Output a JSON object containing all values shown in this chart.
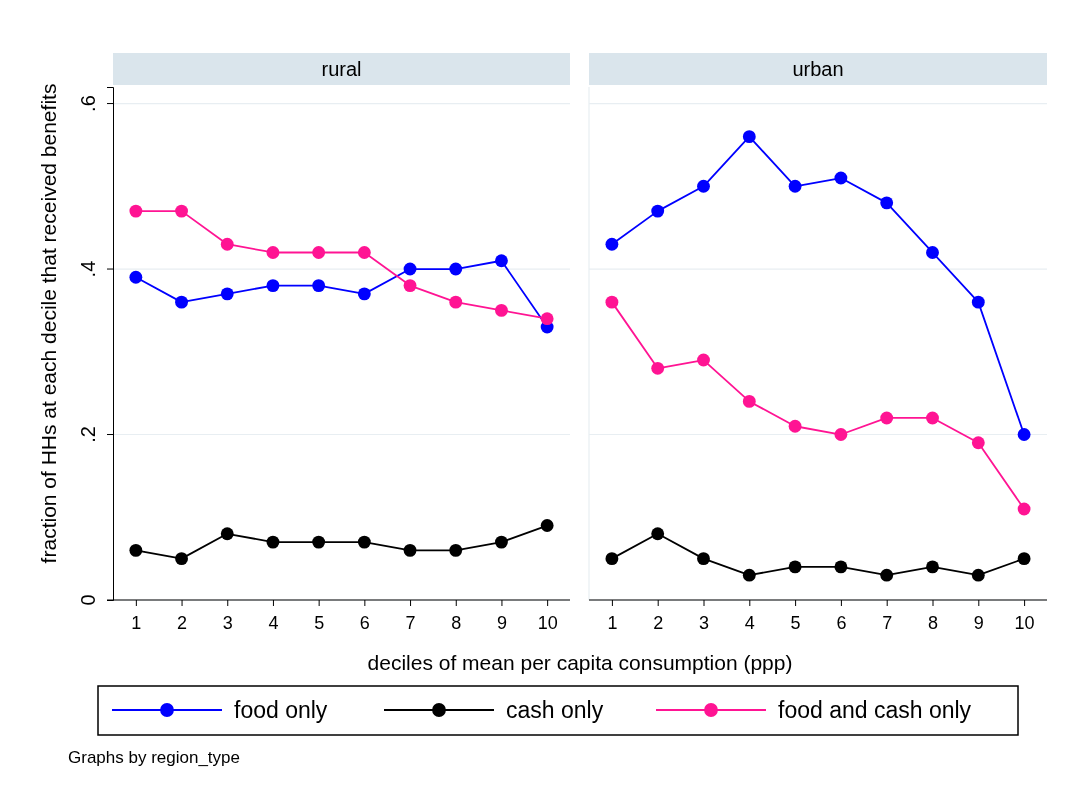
{
  "chart_data": [
    {
      "type": "line",
      "title": "rural",
      "xlabel": "deciles of mean per capita consumption (ppp)",
      "ylabel": "fraction of HHs at each decile that received benefits",
      "categories": [
        "1",
        "2",
        "3",
        "4",
        "5",
        "6",
        "7",
        "8",
        "9",
        "10"
      ],
      "ylim": [
        0,
        0.62
      ],
      "yticks": [
        {
          "value": 0,
          "label": "0"
        },
        {
          "value": 0.2,
          "label": ".2"
        },
        {
          "value": 0.4,
          "label": ".4"
        },
        {
          "value": 0.6,
          "label": ".6"
        }
      ],
      "grid": "y",
      "marker": "circle",
      "legend": "bottom",
      "annotations": [
        "Graphs by region_type"
      ],
      "series": [
        {
          "name": "food only",
          "color": "#0000ff",
          "values": [
            0.39,
            0.36,
            0.37,
            0.38,
            0.38,
            0.37,
            0.4,
            0.4,
            0.41,
            0.33
          ]
        },
        {
          "name": "cash only",
          "color": "#000000",
          "values": [
            0.06,
            0.05,
            0.08,
            0.07,
            0.07,
            0.07,
            0.06,
            0.06,
            0.07,
            0.09
          ]
        },
        {
          "name": "food and cash only",
          "color": "#ff1493",
          "values": [
            0.47,
            0.47,
            0.43,
            0.42,
            0.42,
            0.42,
            0.38,
            0.36,
            0.35,
            0.34
          ]
        }
      ]
    },
    {
      "type": "line",
      "title": "urban",
      "categories": [
        "1",
        "2",
        "3",
        "4",
        "5",
        "6",
        "7",
        "8",
        "9",
        "10"
      ],
      "ylim": [
        0,
        0.62
      ],
      "yticks": [
        {
          "value": 0,
          "label": null
        },
        {
          "value": 0.2,
          "label": null
        },
        {
          "value": 0.4,
          "label": null
        },
        {
          "value": 0.6,
          "label": null
        }
      ],
      "tick_labels": "x",
      "grid": "y",
      "marker": "circle",
      "series": [
        {
          "color": "#0000ff",
          "values": [
            0.43,
            0.47,
            0.5,
            0.56,
            0.5,
            0.51,
            0.48,
            0.42,
            0.36,
            0.2
          ]
        },
        {
          "color": "#000000",
          "values": [
            0.05,
            0.08,
            0.05,
            0.03,
            0.04,
            0.04,
            0.03,
            0.04,
            0.03,
            0.05
          ]
        },
        {
          "color": "#ff1493",
          "values": [
            0.36,
            0.28,
            0.29,
            0.24,
            0.21,
            0.2,
            0.22,
            0.22,
            0.19,
            0.11
          ]
        }
      ]
    }
  ]
}
